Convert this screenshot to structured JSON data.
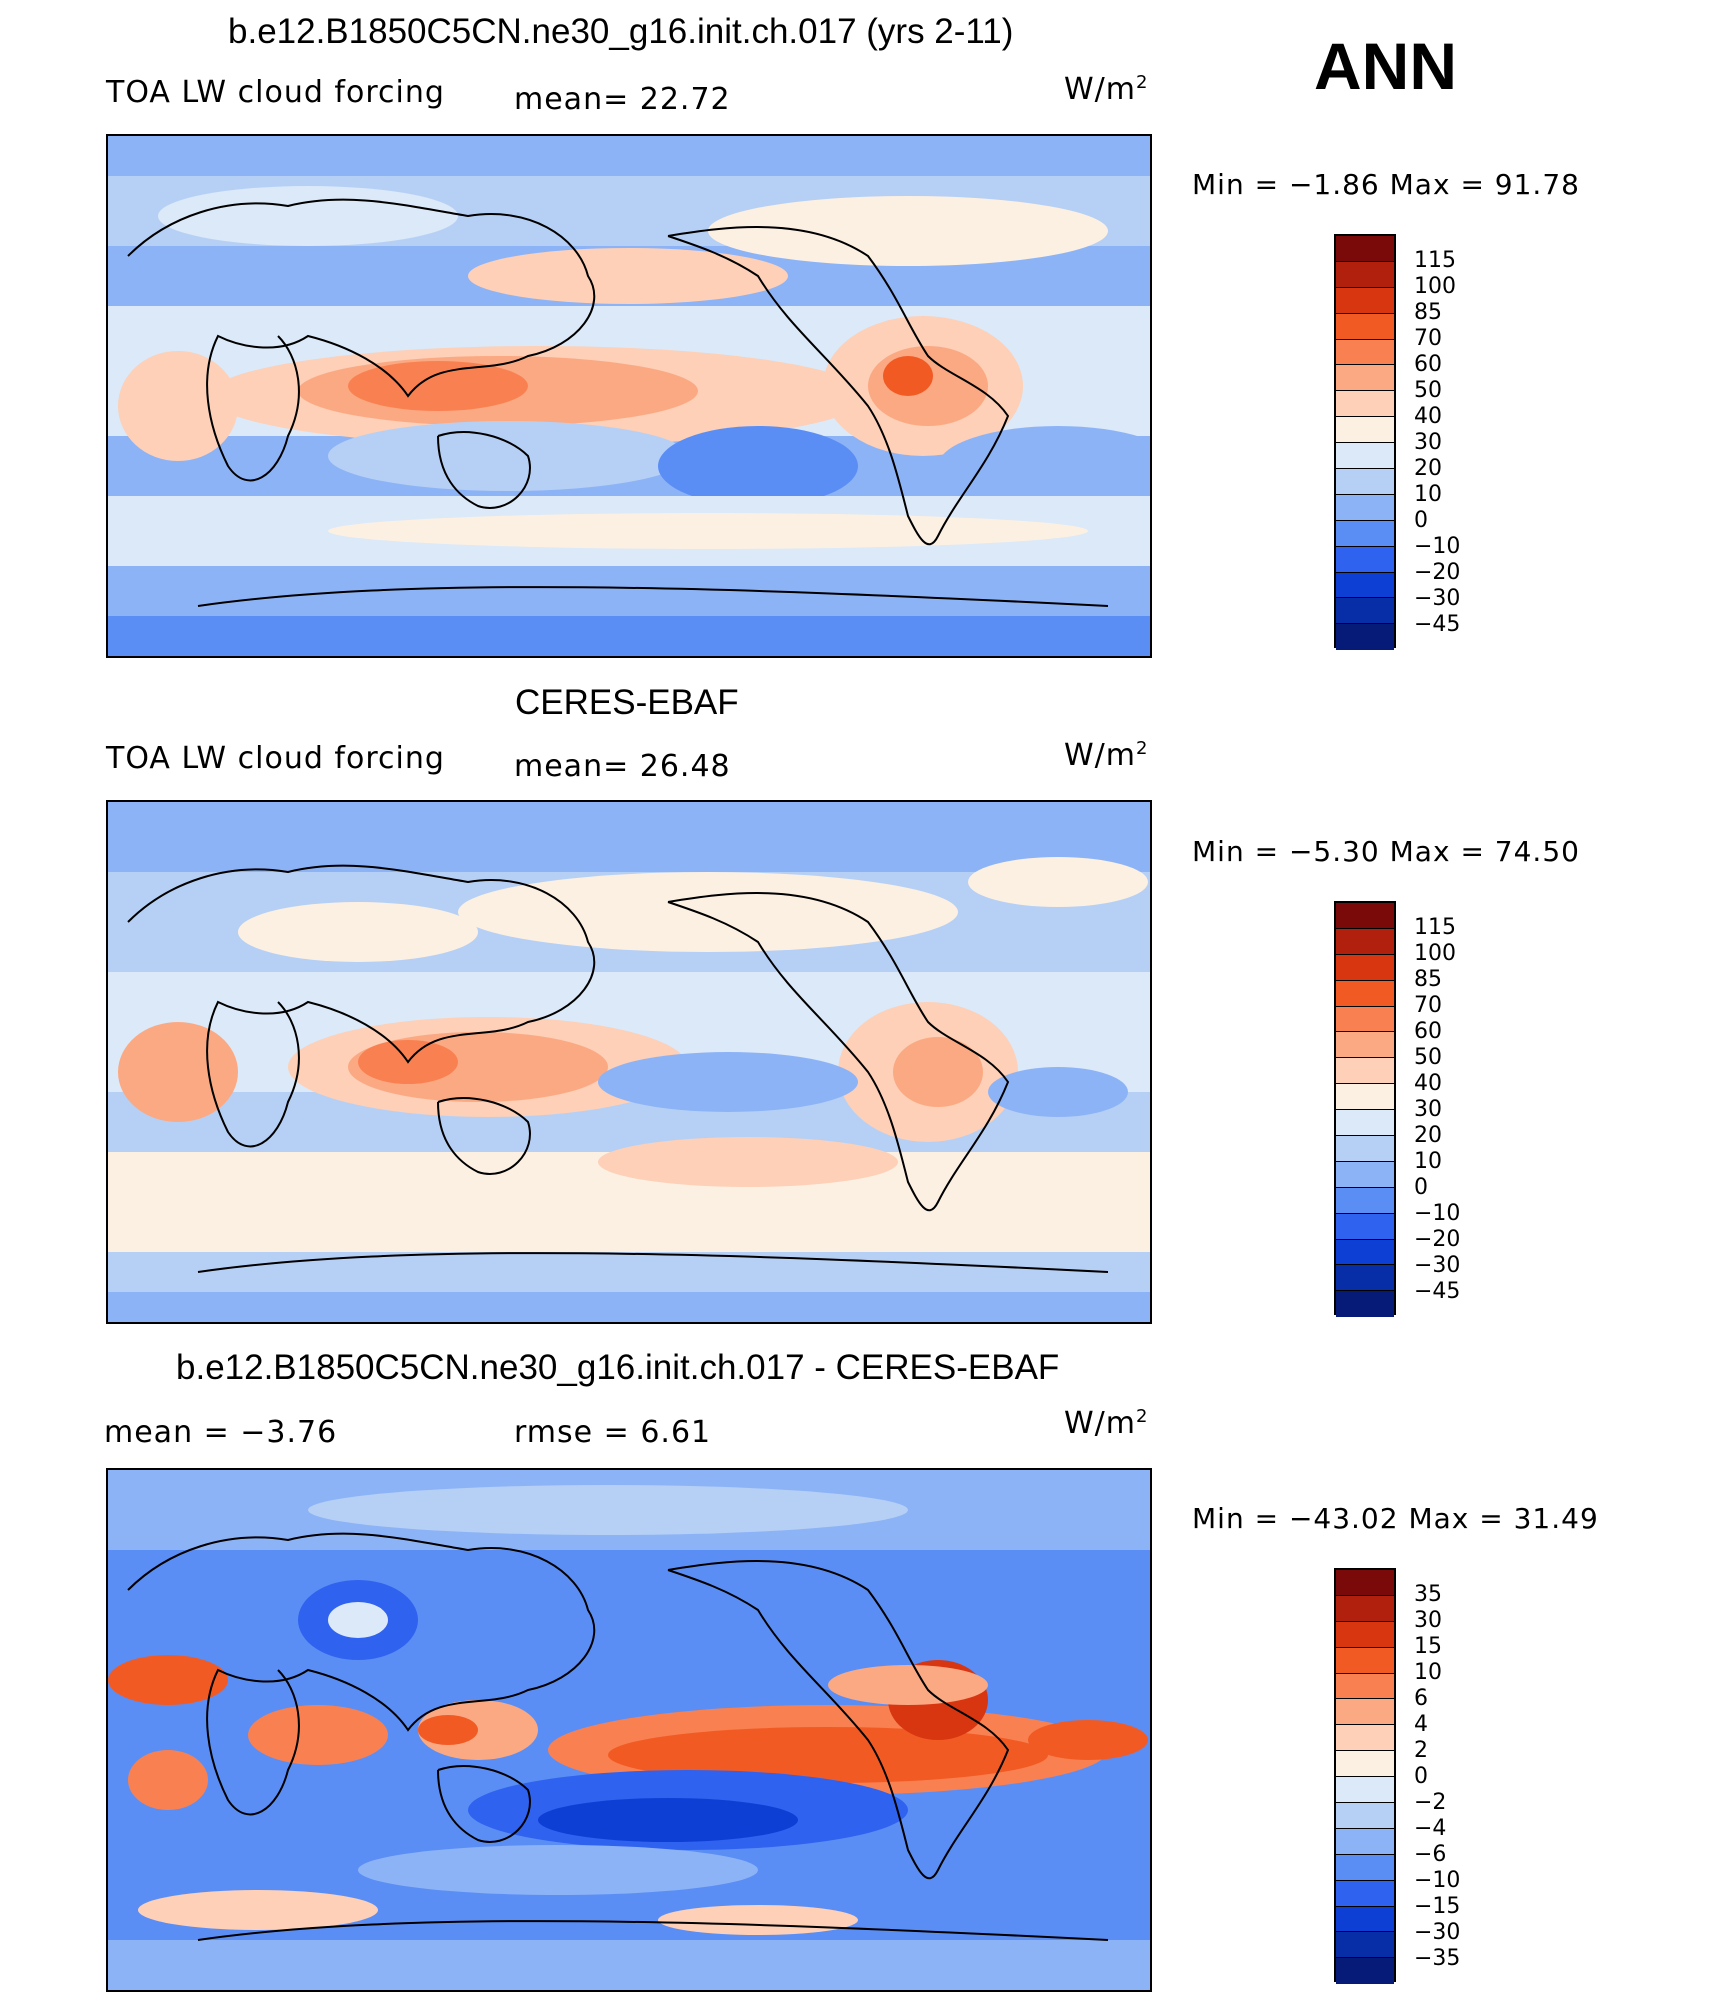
{
  "header": {
    "season": "ANN"
  },
  "panels": [
    {
      "title": "b.e12.B1850C5CN.ne30_g16.init.ch.017 (yrs 2-11)",
      "left_label": "TOA LW cloud forcing",
      "stat1": "mean=  22.72",
      "units": "W/m",
      "units_sup": "2",
      "minmax": "Min =  −1.86 Max =  91.78",
      "scheme": "full",
      "colorbar_labels": [
        "115",
        "100",
        "85",
        "70",
        "60",
        "50",
        "40",
        "30",
        "20",
        "10",
        "0",
        "−10",
        "−20",
        "−30",
        "−45"
      ]
    },
    {
      "title": "CERES-EBAF",
      "left_label": "TOA LW cloud forcing",
      "stat1": "mean=  26.48",
      "units": "W/m",
      "units_sup": "2",
      "minmax": "Min =  −5.30 Max =  74.50",
      "scheme": "full",
      "colorbar_labels": [
        "115",
        "100",
        "85",
        "70",
        "60",
        "50",
        "40",
        "30",
        "20",
        "10",
        "0",
        "−10",
        "−20",
        "−30",
        "−45"
      ]
    },
    {
      "title": "b.e12.B1850C5CN.ne30_g16.init.ch.017 - CERES-EBAF",
      "left_label": "mean =   −3.76",
      "stat1": "rmse =    6.61",
      "units": "W/m",
      "units_sup": "2",
      "minmax": "Min = −43.02 Max =  31.49",
      "scheme": "diff",
      "colorbar_labels": [
        "35",
        "30",
        "15",
        "10",
        "6",
        "4",
        "2",
        "0",
        "−2",
        "−4",
        "−6",
        "−10",
        "−15",
        "−30",
        "−35"
      ]
    }
  ],
  "colors": {
    "bar": [
      "#7a0a0a",
      "#b1200d",
      "#d83511",
      "#f25a24",
      "#f98151",
      "#fba983",
      "#fdd0b7",
      "#fcf0e3",
      "#dbe9f8",
      "#b6d0f5",
      "#8db3f7",
      "#5b8ef5",
      "#2f62ef",
      "#0e3fd4",
      "#072ea6",
      "#061a78"
    ],
    "ocean": "#8fb3f6",
    "land_line": "#000000"
  }
}
